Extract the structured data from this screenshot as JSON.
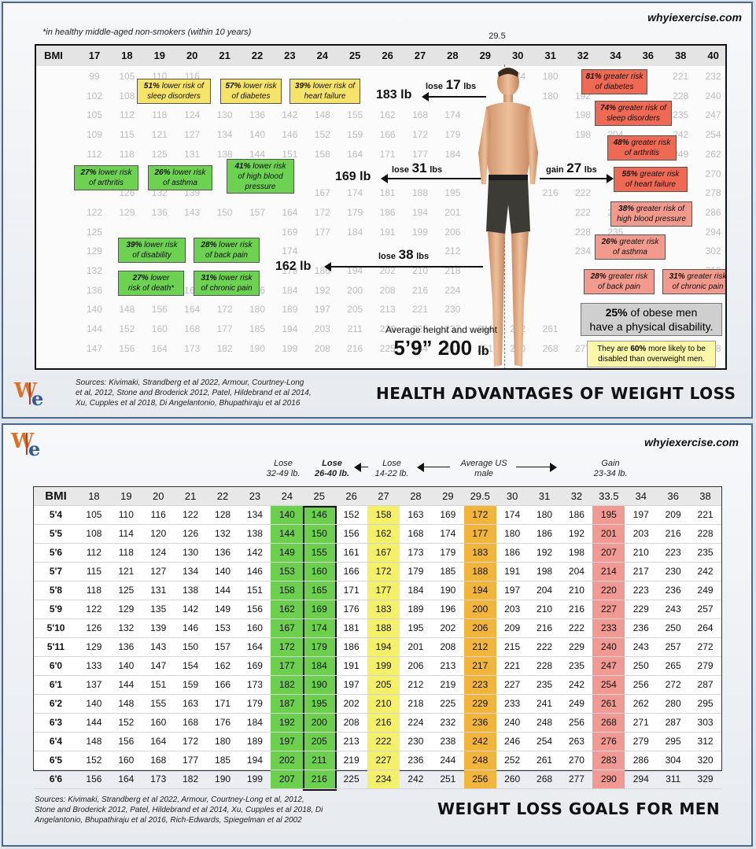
{
  "panel1": {
    "brand": "whyiexercise.com",
    "note": "*in healthy middle-aged non-smokers (within 10 years)",
    "bmi_marker": "29.5",
    "bmi_label": "BMI",
    "bmi_columns": [
      "17",
      "18",
      "19",
      "20",
      "21",
      "22",
      "23",
      "24",
      "25",
      "26",
      "27",
      "28",
      "29",
      "30",
      "31",
      "32",
      "34",
      "36",
      "38",
      "40"
    ],
    "background_rows": [
      [
        "99",
        "105",
        "110",
        "116",
        "",
        "",
        "",
        "",
        "",
        "",
        "",
        "",
        "",
        "174",
        "180",
        "",
        "",
        "",
        "221",
        "232"
      ],
      [
        "102",
        "108",
        "",
        "",
        "",
        "",
        "",
        "",
        "",
        "",
        "",
        "",
        "",
        "",
        "180",
        "192",
        "",
        "",
        "228",
        "240"
      ],
      [
        "105",
        "112",
        "118",
        "124",
        "130",
        "136",
        "142",
        "148",
        "155",
        "162",
        "168",
        "174",
        "",
        "",
        "",
        "198",
        "",
        "",
        "235",
        "247"
      ],
      [
        "109",
        "115",
        "121",
        "127",
        "134",
        "140",
        "146",
        "152",
        "159",
        "166",
        "172",
        "179",
        "",
        "",
        "",
        "198",
        "204",
        "",
        "242",
        "254"
      ],
      [
        "112",
        "118",
        "125",
        "131",
        "138",
        "144",
        "151",
        "158",
        "164",
        "171",
        "177",
        "184",
        "",
        "",
        "",
        "",
        "210",
        "",
        "249",
        "262"
      ],
      [
        "",
        "",
        "",
        "",
        "",
        "",
        "",
        "",
        "",
        "",
        "",
        "",
        "",
        "",
        "",
        "",
        "",
        "",
        "",
        "270"
      ],
      [
        "",
        "126",
        "132",
        "139",
        "",
        "",
        "",
        "167",
        "174",
        "181",
        "188",
        "195",
        "",
        "",
        "216",
        "222",
        "",
        "",
        "",
        "278"
      ],
      [
        "122",
        "129",
        "136",
        "143",
        "150",
        "157",
        "164",
        "172",
        "179",
        "186",
        "194",
        "201",
        "",
        "",
        "",
        "222",
        "229",
        "",
        "",
        "286"
      ],
      [
        "125",
        "",
        "",
        "",
        "",
        "",
        "169",
        "177",
        "184",
        "191",
        "199",
        "206",
        "",
        "",
        "",
        "228",
        "235",
        "",
        "",
        "294"
      ],
      [
        "129",
        "",
        "",
        "",
        "",
        "",
        "174",
        "",
        "",
        "",
        "",
        "212",
        "",
        "",
        "",
        "234",
        "242",
        "",
        "",
        "302"
      ],
      [
        "132",
        "",
        "",
        "",
        "",
        "",
        "179",
        "186",
        "194",
        "202",
        "210",
        "218",
        "",
        "",
        "",
        "",
        "",
        "",
        "",
        "310"
      ],
      [
        "136",
        "144",
        "152",
        "160",
        "168",
        "176",
        "184",
        "192",
        "200",
        "208",
        "216",
        "224",
        "",
        "",
        "",
        "",
        "",
        "",
        "",
        "319"
      ],
      [
        "140",
        "148",
        "156",
        "164",
        "172",
        "180",
        "189",
        "197",
        "205",
        "213",
        "221",
        "230",
        "",
        "",
        "",
        "",
        "",
        "",
        "",
        "328"
      ],
      [
        "144",
        "152",
        "160",
        "168",
        "177",
        "185",
        "194",
        "203",
        "211",
        "220",
        "228",
        "237",
        "244",
        "252",
        "261",
        "",
        "",
        "",
        "",
        "338"
      ],
      [
        "147",
        "156",
        "164",
        "173",
        "182",
        "190",
        "199",
        "208",
        "216",
        "225",
        "234",
        "242",
        "251",
        "260",
        "268",
        "277",
        "",
        "",
        "",
        "348"
      ]
    ],
    "lower_risk": [
      {
        "pct": "51%",
        "rest": "lower risk of",
        "line2": "sleep disorders"
      },
      {
        "pct": "57%",
        "rest": "lower risk",
        "line2": "of diabetes"
      },
      {
        "pct": "39%",
        "rest": "lower risk of",
        "line2": "heart failure"
      },
      {
        "pct": "27%",
        "rest": "lower risk",
        "line2": "of arthritis"
      },
      {
        "pct": "26%",
        "rest": "lower risk",
        "line2": "of asthma"
      },
      {
        "pct": "41%",
        "rest": "lower risk",
        "line2": "of high blood pressure"
      },
      {
        "pct": "39%",
        "rest": "lower risk",
        "line2": "of disability"
      },
      {
        "pct": "28%",
        "rest": "lower risk",
        "line2": "of back pain"
      },
      {
        "pct": "27%",
        "rest": "lower",
        "line2": "risk of death*"
      },
      {
        "pct": "31%",
        "rest": "lower risk",
        "line2": "of chronic pain"
      }
    ],
    "greater_risk": [
      {
        "pct": "81%",
        "rest": "greater risk",
        "line2": "of diabetes"
      },
      {
        "pct": "74%",
        "rest": "greater risk of",
        "line2": "sleep disorders"
      },
      {
        "pct": "48%",
        "rest": "greater risk",
        "line2": "of arthritis"
      },
      {
        "pct": "55%",
        "rest": "greater risk",
        "line2": "of heart failure"
      },
      {
        "pct": "38%",
        "rest": "greater risk of",
        "line2": "high blood pressure"
      },
      {
        "pct": "26%",
        "rest": "greater risk",
        "line2": "of asthma"
      },
      {
        "pct": "28%",
        "rest": "greater risk",
        "line2": "of back pain"
      },
      {
        "pct": "31%",
        "rest": "greater risk",
        "line2": "of chronic pain"
      }
    ],
    "weights": {
      "w183": "183 lb",
      "w169": "169 lb",
      "w162": "162 lb"
    },
    "changes": [
      {
        "word": "lose",
        "num": "17",
        "unit": "lbs"
      },
      {
        "word": "lose",
        "num": "31",
        "unit": "lbs"
      },
      {
        "word": "gain",
        "num": "27",
        "unit": "lbs"
      },
      {
        "word": "lose",
        "num": "38",
        "unit": "lbs"
      }
    ],
    "average_label": "Average height and weight",
    "average_value": "5’9” 200",
    "average_unit": "lb",
    "obese_pct": "25%",
    "obese_line1": "of obese men",
    "obese_line2": "have a physical disability.",
    "disabled_a": "They are",
    "disabled_pct": "60%",
    "disabled_b": "more likely to be disabled than overweight men.",
    "sources": "Sources:  Kivimaki, Strandberg et al 2022, Armour, Courtney-Long et al, 2012, Stone and Broderick 2012, Patel, Hildebrand et al 2014, Xu, Cupples et al 2018, Di Angelantonio, Bhupathiraju et al 2016",
    "title": "HEALTH ADVANTAGES OF WEIGHT LOSS",
    "logo_w": "W",
    "logo_e": "e"
  },
  "panel2": {
    "brand": "whyiexercise.com",
    "annotations": [
      {
        "l1": "Lose",
        "l2": "32-49 lb.",
        "bold": false
      },
      {
        "l1": "Lose",
        "l2": "26-40 lb.",
        "bold": true
      },
      {
        "l1": "Lose",
        "l2": "14-22 lb.",
        "bold": false
      },
      {
        "l1": "Average US",
        "l2": "male",
        "bold": false
      },
      {
        "l1": "Gain",
        "l2": "23-34 lb.",
        "bold": false
      }
    ],
    "sources": "Sources:  Kivimaki, Strandberg et al 2022, Armour, Courtney-Long et al, 2012, Stone and Broderick 2012, Patel, Hildebrand et al 2014, Xu, Cupples et al 2018, Di Angelantonio, Bhupathiraju et al 2016, Rich-Edwards, Spiegelman et al 2002",
    "title": "WEIGHT LOSS GOALS FOR MEN",
    "logo_w": "W",
    "logo_e": "e"
  },
  "chart_data": {
    "type": "table",
    "title": "WEIGHT LOSS GOALS FOR MEN",
    "row_header": "BMI",
    "columns": [
      "18",
      "19",
      "20",
      "21",
      "22",
      "23",
      "24",
      "25",
      "26",
      "27",
      "28",
      "29",
      "29.5",
      "30",
      "31",
      "32",
      "33.5",
      "34",
      "36",
      "38"
    ],
    "rows": [
      {
        "height": "5'4",
        "values": [
          105,
          110,
          116,
          122,
          128,
          134,
          140,
          146,
          152,
          158,
          163,
          169,
          172,
          174,
          180,
          186,
          195,
          197,
          209,
          221
        ]
      },
      {
        "height": "5'5",
        "values": [
          108,
          114,
          120,
          126,
          132,
          138,
          144,
          150,
          156,
          162,
          168,
          174,
          177,
          180,
          186,
          192,
          201,
          203,
          216,
          228
        ]
      },
      {
        "height": "5'6",
        "values": [
          112,
          118,
          124,
          130,
          136,
          142,
          149,
          155,
          161,
          167,
          173,
          179,
          183,
          186,
          192,
          198,
          207,
          210,
          223,
          235
        ]
      },
      {
        "height": "5'7",
        "values": [
          115,
          121,
          127,
          134,
          140,
          146,
          153,
          160,
          166,
          172,
          179,
          185,
          188,
          191,
          198,
          204,
          214,
          217,
          230,
          242
        ]
      },
      {
        "height": "5'8",
        "values": [
          118,
          125,
          131,
          138,
          144,
          151,
          158,
          165,
          171,
          177,
          184,
          190,
          194,
          197,
          204,
          210,
          220,
          223,
          236,
          249
        ]
      },
      {
        "height": "5'9",
        "values": [
          122,
          129,
          135,
          142,
          149,
          156,
          162,
          169,
          176,
          183,
          189,
          196,
          200,
          203,
          210,
          216,
          227,
          229,
          243,
          257
        ]
      },
      {
        "height": "5'10",
        "values": [
          126,
          132,
          139,
          146,
          153,
          160,
          167,
          174,
          181,
          188,
          195,
          202,
          206,
          209,
          216,
          222,
          233,
          236,
          250,
          264
        ]
      },
      {
        "height": "5'11",
        "values": [
          129,
          136,
          143,
          150,
          157,
          164,
          172,
          179,
          186,
          194,
          201,
          208,
          212,
          215,
          222,
          229,
          240,
          243,
          257,
          272
        ]
      },
      {
        "height": "6'0",
        "values": [
          133,
          140,
          147,
          154,
          162,
          169,
          177,
          184,
          191,
          199,
          206,
          213,
          217,
          221,
          228,
          235,
          247,
          250,
          265,
          279
        ]
      },
      {
        "height": "6'1",
        "values": [
          137,
          144,
          151,
          159,
          166,
          173,
          182,
          190,
          197,
          205,
          212,
          219,
          223,
          227,
          235,
          242,
          254,
          256,
          272,
          287
        ]
      },
      {
        "height": "6'2",
        "values": [
          140,
          148,
          155,
          163,
          171,
          179,
          187,
          195,
          202,
          210,
          218,
          225,
          229,
          233,
          241,
          249,
          261,
          262,
          280,
          295
        ]
      },
      {
        "height": "6'3",
        "values": [
          144,
          152,
          160,
          168,
          176,
          184,
          192,
          200,
          208,
          216,
          224,
          232,
          236,
          240,
          248,
          256,
          268,
          271,
          287,
          303
        ]
      },
      {
        "height": "6'4",
        "values": [
          148,
          156,
          164,
          172,
          180,
          189,
          197,
          205,
          213,
          222,
          230,
          238,
          242,
          246,
          254,
          263,
          276,
          279,
          295,
          312
        ]
      },
      {
        "height": "6'5",
        "values": [
          152,
          160,
          168,
          177,
          185,
          194,
          202,
          211,
          219,
          227,
          236,
          244,
          248,
          252,
          261,
          270,
          283,
          286,
          304,
          320
        ]
      },
      {
        "height": "6'6",
        "values": [
          156,
          164,
          173,
          182,
          190,
          199,
          207,
          216,
          225,
          234,
          242,
          251,
          256,
          260,
          268,
          277,
          290,
          294,
          311,
          329
        ]
      }
    ],
    "highlight_colors": {
      "24": "#6ccf4e",
      "25": "#6ccf4e",
      "27": "#f4f06a",
      "29.5": "#f2b53c",
      "33.5": "#f19a94"
    }
  }
}
